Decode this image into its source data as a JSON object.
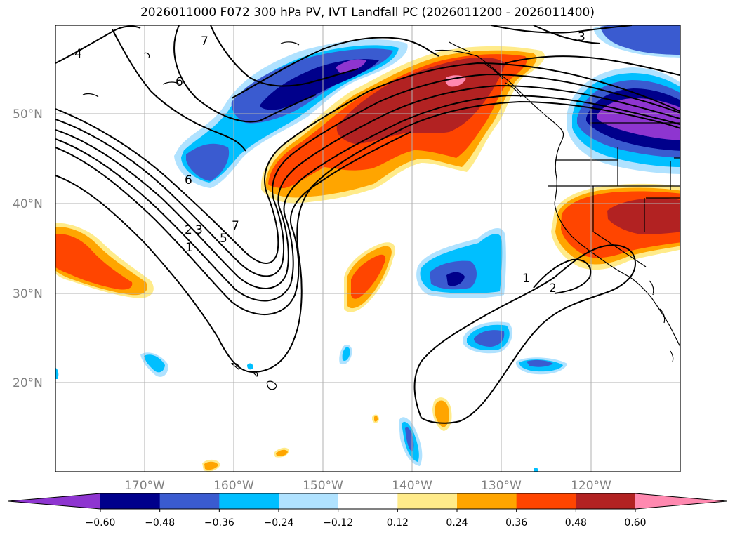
{
  "title": "2026011000 F072 300 hPa PV, IVT Landfall PC (2026011200 - 2026011400)",
  "map": {
    "lat_labels": [
      "50°N",
      "40°N",
      "30°N",
      "20°N"
    ],
    "lon_labels": [
      "170°W",
      "160°W",
      "150°W",
      "140°W",
      "130°W",
      "120°W"
    ],
    "contour_labels": [
      "1",
      "2",
      "3",
      "5",
      "6",
      "7",
      "7",
      "4",
      "3",
      "6",
      "1",
      "2"
    ]
  },
  "colorbar": {
    "ticks": [
      "−0.60",
      "−0.48",
      "−0.36",
      "−0.24",
      "−0.12",
      "0.12",
      "0.24",
      "0.36",
      "0.48",
      "0.60"
    ],
    "colors": [
      "#8e35d0",
      "#00008b",
      "#3a5bd0",
      "#00bfff",
      "#b0e2ff",
      "#ffffff",
      "#ffeb8a",
      "#ffa500",
      "#ff4500",
      "#b22222",
      "#ff89b0"
    ]
  },
  "colors": {
    "purple": "#8e35d0",
    "navy": "#00008b",
    "royal": "#3a5bd0",
    "deepsky": "#00bfff",
    "lightsky": "#b0e2ff",
    "lightyellow": "#ffeb8a",
    "orange": "#ffa500",
    "orangered": "#ff4500",
    "firebrick": "#b22222",
    "pink": "#ff89b0"
  }
}
